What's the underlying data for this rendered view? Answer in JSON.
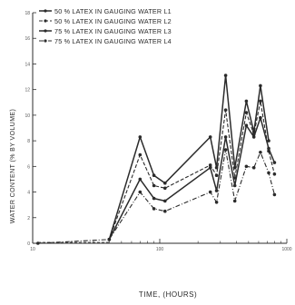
{
  "chart_data": {
    "type": "line",
    "title": "",
    "xlabel": "TIME, (HOURS)",
    "ylabel": "WATER CONTENT (% BY VOLUME)",
    "x_axis_scale": "log",
    "xlim": [
      10,
      1000
    ],
    "ylim": [
      0,
      18
    ],
    "x_ticks": [
      {
        "value": 10,
        "label": "10"
      },
      {
        "value": 100,
        "label": "100"
      },
      {
        "value": 1000,
        "label": "1000"
      }
    ],
    "y_ticks": [
      {
        "value": 0,
        "label": "0"
      },
      {
        "value": 2,
        "label": "2"
      },
      {
        "value": 4,
        "label": "4"
      },
      {
        "value": 6,
        "label": "6"
      },
      {
        "value": 8,
        "label": "8"
      },
      {
        "value": 10,
        "label": "10"
      },
      {
        "value": 12,
        "label": "12"
      },
      {
        "value": 14,
        "label": "14"
      },
      {
        "value": 16,
        "label": "16"
      },
      {
        "value": 18,
        "label": "18"
      }
    ],
    "grid": false,
    "legend_position": "top-left",
    "x": [
      11,
      40,
      70,
      90,
      110,
      250,
      280,
      330,
      390,
      480,
      550,
      620,
      720,
      800,
      1000
    ],
    "series": [
      {
        "name": "50 % LATEX IN GAUGING WATER L1",
        "line_style": "solid",
        "points": [
          [
            40,
            0.3
          ],
          [
            70,
            8.3
          ],
          [
            90,
            5.3
          ],
          [
            110,
            4.7
          ],
          [
            250,
            8.3
          ],
          [
            280,
            5.9
          ],
          [
            330,
            13.1
          ],
          [
            390,
            5.9
          ],
          [
            480,
            11.1
          ],
          [
            550,
            8.7
          ],
          [
            620,
            12.3
          ],
          [
            720,
            8.0
          ]
        ]
      },
      {
        "name": "50 % LATEX IN GAUGING WATER L2",
        "line_style": "dashed",
        "points": [
          [
            40,
            0.3
          ],
          [
            70,
            6.9
          ],
          [
            90,
            4.5
          ],
          [
            110,
            4.3
          ],
          [
            250,
            6.1
          ],
          [
            280,
            5.3
          ],
          [
            330,
            10.4
          ],
          [
            390,
            5.1
          ],
          [
            480,
            10.2
          ],
          [
            550,
            8.5
          ],
          [
            620,
            11.1
          ],
          [
            720,
            7.2
          ],
          [
            800,
            5.4
          ]
        ]
      },
      {
        "name": "75 % LATEX IN GAUGING WATER L3",
        "line_style": "solid",
        "points": [
          [
            40,
            0.3
          ],
          [
            70,
            5.0
          ],
          [
            90,
            3.5
          ],
          [
            110,
            3.3
          ],
          [
            250,
            5.9
          ],
          [
            280,
            4.1
          ],
          [
            330,
            8.3
          ],
          [
            390,
            4.5
          ],
          [
            480,
            9.2
          ],
          [
            550,
            8.3
          ],
          [
            620,
            9.8
          ],
          [
            720,
            7.4
          ],
          [
            800,
            6.3
          ]
        ]
      },
      {
        "name": "75 % LATEX IN GAUGING WATER L4",
        "line_style": "dash-dot",
        "points": [
          [
            11,
            0.0
          ],
          [
            40,
            0.3
          ],
          [
            70,
            4.0
          ],
          [
            90,
            2.7
          ],
          [
            110,
            2.5
          ],
          [
            250,
            4.0
          ],
          [
            280,
            3.2
          ],
          [
            330,
            7.3
          ],
          [
            390,
            3.3
          ],
          [
            480,
            6.0
          ],
          [
            550,
            5.9
          ],
          [
            620,
            7.1
          ],
          [
            720,
            5.5
          ],
          [
            800,
            3.8
          ]
        ]
      }
    ]
  }
}
